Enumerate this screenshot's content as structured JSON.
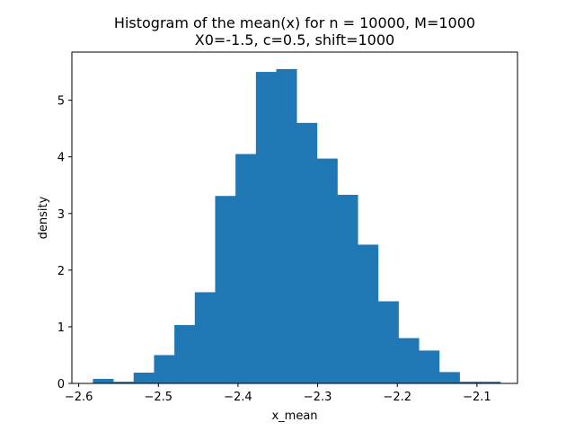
{
  "chart_data": {
    "type": "histogram",
    "title_lines": [
      "Histogram of the mean(x) for n = 10000, M=1000",
      "X0=-1.5, c=0.5, shift=1000"
    ],
    "xlabel": "x_mean",
    "ylabel": "density",
    "xlim": [
      -2.6086,
      -2.0491
    ],
    "ylim": [
      0,
      5.85
    ],
    "xticks": [
      -2.6,
      -2.5,
      -2.4,
      -2.3,
      -2.2,
      -2.1
    ],
    "xtick_labels": [
      "−2.6",
      "−2.5",
      "−2.4",
      "−2.3",
      "−2.2",
      "−2.1"
    ],
    "yticks": [
      0,
      1,
      2,
      3,
      4,
      5
    ],
    "ytick_labels": [
      "0",
      "1",
      "2",
      "3",
      "4",
      "5"
    ],
    "bin_start": -2.5822,
    "bin_width": 0.02558,
    "densities": [
      0.08,
      0.03,
      0.19,
      0.5,
      1.03,
      1.61,
      3.31,
      4.05,
      5.5,
      5.55,
      4.6,
      3.97,
      3.33,
      2.45,
      1.45,
      0.8,
      0.58,
      0.2,
      0.03,
      0.03
    ],
    "bar_color": "#1f77b4"
  }
}
